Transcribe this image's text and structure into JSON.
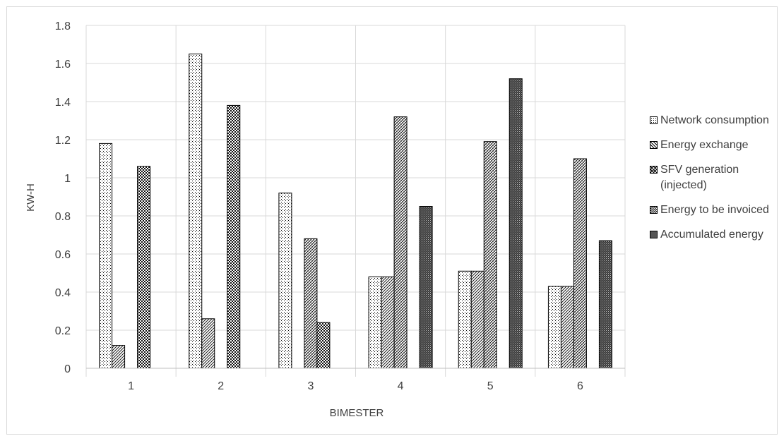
{
  "chart_data": {
    "type": "bar",
    "xlabel": "BIMESTER",
    "ylabel": "KW-H",
    "categories": [
      "1",
      "2",
      "3",
      "4",
      "5",
      "6"
    ],
    "ylim": [
      0,
      1.8
    ],
    "yticks": [
      "0",
      "0.2",
      "0.4",
      "0.6",
      "0.8",
      "1",
      "1.2",
      "1.4",
      "1.6",
      "1.8"
    ],
    "grid": true,
    "legend_position": "right",
    "series": [
      {
        "name": "Network consumption",
        "values": [
          1.18,
          1.65,
          0.92,
          0.48,
          0.51,
          0.43
        ],
        "pattern": "dots"
      },
      {
        "name": "Energy exchange",
        "values": [
          0.12,
          0.26,
          0,
          0.48,
          0.51,
          0.43
        ],
        "pattern": "diagonal"
      },
      {
        "name": "SFV generation (injected)",
        "values": [
          0,
          0,
          0.68,
          1.32,
          1.19,
          1.1
        ],
        "pattern": "crosshatch"
      },
      {
        "name": "Energy to be invoiced",
        "values": [
          1.06,
          1.38,
          0.24,
          0,
          0,
          0
        ],
        "pattern": "checker"
      },
      {
        "name": "Accumulated energy",
        "values": [
          0,
          0,
          0,
          0.85,
          1.52,
          0.67
        ],
        "pattern": "dense"
      }
    ]
  }
}
